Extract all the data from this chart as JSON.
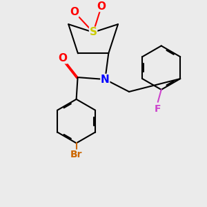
{
  "bg_color": "#ebebeb",
  "atom_colors": {
    "S": "#cccc00",
    "O": "#ff0000",
    "N": "#0000ff",
    "F": "#cc44cc",
    "Br": "#cc6600",
    "C": "#000000"
  },
  "bond_color": "#000000",
  "bond_lw": 1.5,
  "dbo": 0.018,
  "fs": 10
}
